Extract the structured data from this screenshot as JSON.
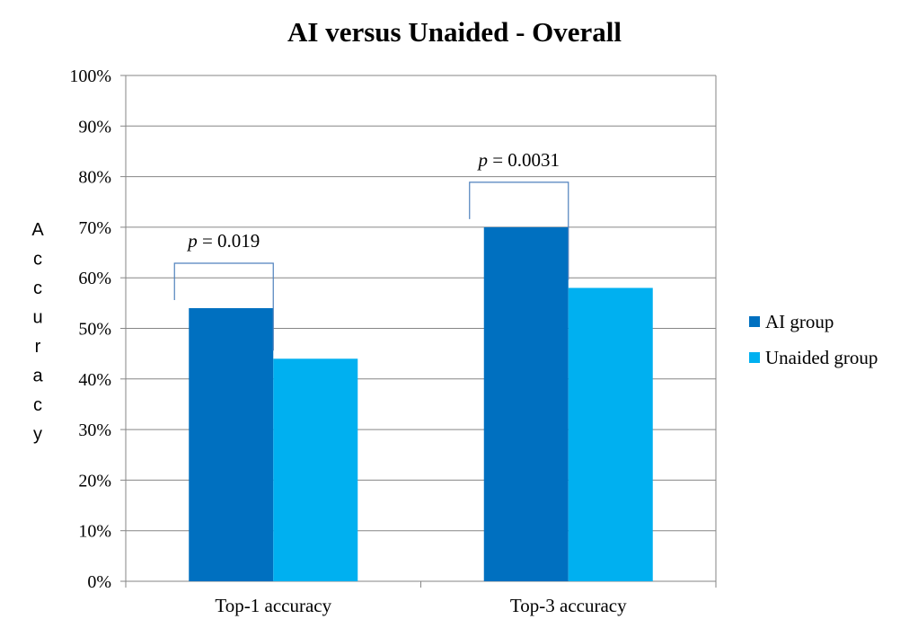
{
  "chart_data": {
    "type": "bar",
    "title": "AI versus Unaided - Overall",
    "ylabel": "Accuracy",
    "xlabel": "",
    "categories": [
      "Top-1 accuracy",
      "Top-3 accuracy"
    ],
    "series": [
      {
        "name": "AI group",
        "values": [
          54,
          70
        ],
        "color": "#0070C0"
      },
      {
        "name": "Unaided group",
        "values": [
          44,
          58
        ],
        "color": "#00B0F0"
      }
    ],
    "ylim": [
      0,
      100
    ],
    "yticks": [
      "0%",
      "10%",
      "20%",
      "30%",
      "40%",
      "50%",
      "60%",
      "70%",
      "80%",
      "90%",
      "100%"
    ],
    "grid": true,
    "legend_position": "right",
    "annotations": [
      {
        "category": "Top-1 accuracy",
        "p_symbol": "p",
        "p_text": " = 0.019"
      },
      {
        "category": "Top-3 accuracy",
        "p_symbol": "p",
        "p_text": " = 0.0031"
      }
    ],
    "bracket_color": "#4F81BD",
    "grid_color": "#868686"
  }
}
